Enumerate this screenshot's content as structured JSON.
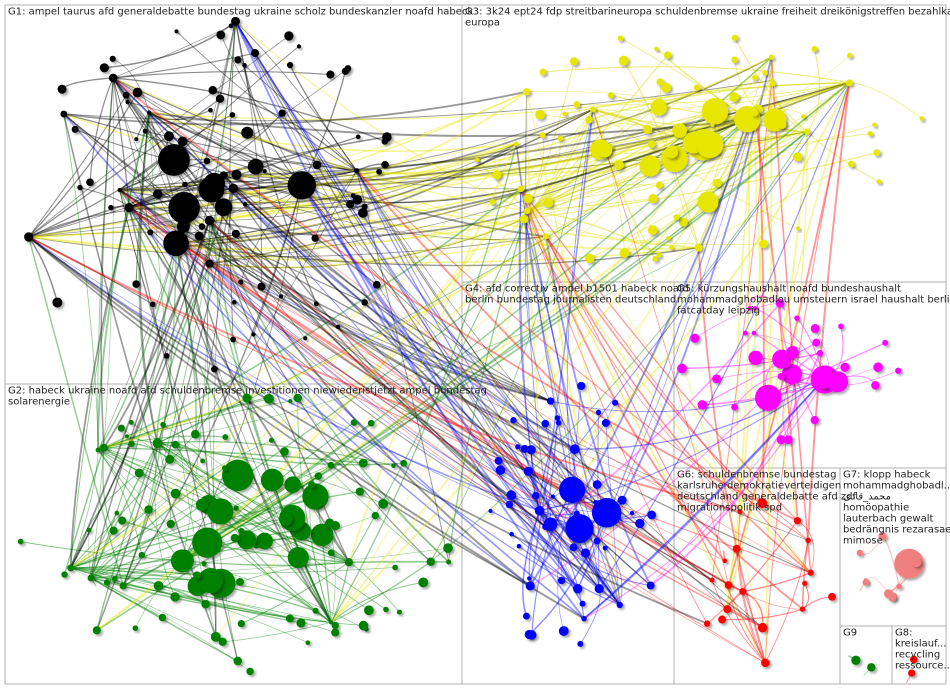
{
  "groups": [
    {
      "label_lines": [
        "G1: ampel taurus afd generaldebatte bundestag ukraine scholz bundeskanzler noafd habeck"
      ],
      "color": "#000000"
    },
    {
      "label_lines": [
        "G2: habeck ukraine noafd afd schuldenbremse investitionen niewiederistjetzt ampel bundestag",
        "solarenergie"
      ],
      "color": "#008000"
    },
    {
      "label_lines": [
        "G3: 3k24 ept24 fdp streitbarineuropa schuldenbremse ukraine freiheit dreikönigstreffen bezahlkarte",
        "europa"
      ],
      "color": "#e6e600"
    },
    {
      "label_lines": [
        "G4: afd correctiv ampel b1501 habeck noafd",
        "berlin bundestag journalisten deutschland"
      ],
      "color": "#0000ff"
    },
    {
      "label_lines": [
        "G5: kürzungshaushalt noafd bundeshaushalt",
        "mohammadghobadlou umsteuern israel haushalt berlin",
        "fatcatday leipzig"
      ],
      "color": "#ff00ff"
    },
    {
      "label_lines": [
        "G6: schuldenbremse bundestag",
        "karlsruhe demokratieverteidigen",
        "deutschland generaldebatte afd zdf",
        "migrationspolitik spd"
      ],
      "color": "#ff0000"
    },
    {
      "label_lines": [
        "G7: klopp habeck",
        "mohammadghobadl...",
        "محمد_قادی",
        "homöopathie",
        "lauterbach gewalt",
        "bedrängnis rezarasaei",
        "mimose"
      ],
      "color": "#f08080"
    },
    {
      "label_lines": [
        "G8:",
        "kreislauf...",
        "recycling",
        "ressource..."
      ],
      "color": "#ff0000"
    },
    {
      "label_lines": [
        "G9"
      ],
      "color": "#008000"
    }
  ]
}
